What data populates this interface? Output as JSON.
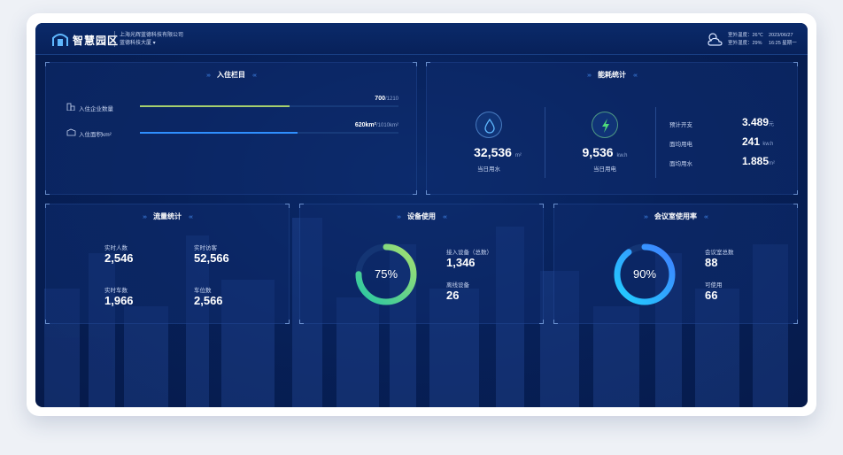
{
  "header": {
    "brand": "智慧园区",
    "company_line1": "上海光辉蓝德科技有限公司",
    "company_line2": "蓝德科技大厦 ▾",
    "weather_line1": "室外温度：26℃",
    "weather_line2": "室外湿度：29%",
    "date_line1": "2023/06/27",
    "date_line2": "16:25 星期一"
  },
  "occupancy": {
    "title": "入住栏目",
    "rows": [
      {
        "label": "入住企业数量",
        "value": "700",
        "total": "/1210",
        "fraction": 0.58,
        "color": "#a6cf6e"
      },
      {
        "label": "入住面积km²",
        "value": "620km²",
        "total": "/1010km²",
        "fraction": 0.61,
        "color": "#2f8fff"
      }
    ]
  },
  "energy": {
    "title": "能耗统计",
    "water": {
      "value": "32,536",
      "unit": "m²",
      "label": "当日用水"
    },
    "power": {
      "value": "9,536",
      "unit": "kw.h",
      "label": "当日用电"
    },
    "stats": [
      {
        "label": "预计开支",
        "value": "3.489",
        "unit": "元"
      },
      {
        "label": "面均用电",
        "value": "241",
        "unit": "kw.h"
      },
      {
        "label": "面均用水",
        "value": "1.885",
        "unit": "m²"
      }
    ]
  },
  "traffic": {
    "title": "流量统计",
    "items": [
      {
        "label": "实时人数",
        "value": "2,546"
      },
      {
        "label": "实时访客",
        "value": "52,566"
      },
      {
        "label": "实时车数",
        "value": "1,966"
      },
      {
        "label": "车位数",
        "value": "2,566"
      }
    ]
  },
  "devices": {
    "title": "设备使用",
    "percent_label": "75%",
    "percent": 75,
    "connected_label": "接入设备（总数）",
    "connected_value": "1,346",
    "offline_label": "离线设备",
    "offline_value": "26",
    "ring_colors": [
      "#25c7a4",
      "#a6e070"
    ]
  },
  "meeting": {
    "title": "会议室使用率",
    "percent_label": "90%",
    "percent": 90,
    "total_label": "会议室总数",
    "total_value": "88",
    "available_label": "可使用",
    "available_value": "66",
    "ring_colors": [
      "#21d0ff",
      "#3f7fff"
    ]
  }
}
